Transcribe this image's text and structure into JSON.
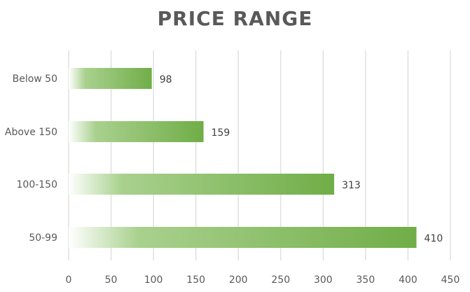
{
  "chart_data": {
    "type": "bar",
    "orientation": "horizontal",
    "title": "PRICE RANGE",
    "categories": [
      "Below 50",
      "Above 150",
      "100-150",
      "50-99"
    ],
    "values": [
      98,
      159,
      313,
      410
    ],
    "xlim": [
      0,
      450
    ],
    "x_ticks": [
      "0",
      "50",
      "100",
      "150",
      "200",
      "250",
      "300",
      "350",
      "400",
      "450"
    ],
    "xlabel": "",
    "ylabel": "",
    "grid": "vertical",
    "legend": "none",
    "data_labels": true
  },
  "colors": {
    "bar_start": "#ffffff",
    "bar_mid": "#a9d18e",
    "bar_end": "#70ad47",
    "grid": "#d9d9d9",
    "text": "#595959"
  }
}
